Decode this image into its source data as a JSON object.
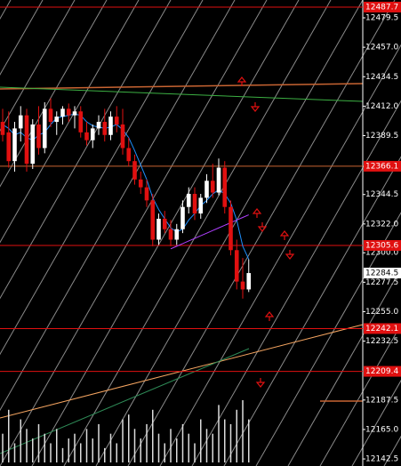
{
  "chart_data": {
    "type": "candlestick",
    "ylim": [
      12137.1,
      12493.1
    ],
    "yticks": [
      12479.5,
      {
        "value": 12457,
        "label": "12457.0"
      },
      12434.5,
      {
        "value": 12412,
        "label": "12412.0"
      },
      12389.5,
      12344.5,
      {
        "value": 12322,
        "label": "12322.0"
      },
      {
        "value": 12300,
        "label": "12300.0"
      },
      12277.5,
      {
        "value": 12255,
        "label": "12255.0"
      },
      12232.5,
      12187.5,
      {
        "value": 12165,
        "label": "12165.0"
      },
      12142.5
    ],
    "open": [
      12400,
      12392,
      12370,
      12395,
      12405,
      12368,
      12398,
      12380,
      12410,
      12400,
      12404,
      12410,
      12405,
      12408,
      12392,
      12386,
      12395,
      12400,
      12390,
      12404,
      12398,
      12380,
      12370,
      12356,
      12350,
      12340,
      12310,
      12326,
      12318,
      12310,
      12318,
      12335,
      12345,
      12330,
      12342,
      12355,
      12346,
      12365,
      12335,
      12302,
      12278,
      12272
    ],
    "high": [
      12410,
      12408,
      12400,
      12412,
      12410,
      12402,
      12412,
      12415,
      12418,
      12408,
      12412,
      12414,
      12412,
      12412,
      12400,
      12398,
      12405,
      12410,
      12408,
      12412,
      12410,
      12388,
      12375,
      12362,
      12356,
      12345,
      12330,
      12332,
      12325,
      12322,
      12340,
      12350,
      12350,
      12345,
      12360,
      12368,
      12372,
      12370,
      12340,
      12310,
      12296,
      12295
    ],
    "low": [
      12385,
      12365,
      12362,
      12385,
      12362,
      12364,
      12375,
      12376,
      12396,
      12390,
      12398,
      12400,
      12395,
      12388,
      12382,
      12380,
      12390,
      12385,
      12386,
      12392,
      12375,
      12366,
      12352,
      12345,
      12335,
      12305,
      12306,
      12315,
      12305,
      12306,
      12315,
      12330,
      12325,
      12326,
      12338,
      12342,
      12344,
      12330,
      12298,
      12272,
      12265,
      12270
    ],
    "close": [
      12390,
      12370,
      12395,
      12405,
      12368,
      12398,
      12380,
      12410,
      12400,
      12404,
      12410,
      12405,
      12408,
      12392,
      12386,
      12395,
      12400,
      12390,
      12404,
      12398,
      12380,
      12370,
      12356,
      12350,
      12340,
      12310,
      12326,
      12318,
      12310,
      12318,
      12335,
      12345,
      12330,
      12342,
      12355,
      12346,
      12365,
      12335,
      12302,
      12278,
      12272,
      12284.5
    ],
    "volumes": [
      30,
      55,
      20,
      45,
      35,
      25,
      40,
      30,
      20,
      35,
      15,
      25,
      30,
      20,
      35,
      25,
      40,
      15,
      30,
      20,
      45,
      50,
      35,
      25,
      40,
      55,
      30,
      20,
      35,
      25,
      40,
      30,
      20,
      45,
      35,
      30,
      60,
      45,
      40,
      55,
      65,
      45
    ],
    "series": [
      {
        "color": "#1e90ff",
        "values": [
          12398,
          12395,
          12390,
          12392,
          12388,
          12386,
          12390,
          12392,
          12398,
          12403,
          12404,
          12405,
          12406,
          12405,
          12400,
          12397,
          12396,
          12395,
          12396,
          12398,
          12394,
          12388,
          12378,
          12367,
          12356,
          12342,
          12333,
          12326,
          12319,
          12316,
          12318,
          12325,
          12330,
          12336,
          12340,
          12345,
          12348,
          12345,
          12338,
          12325,
          12305,
          12295
        ]
      },
      {
        "color": "#b040ff",
        "values": [
          null,
          null,
          null,
          null,
          null,
          null,
          null,
          null,
          null,
          null,
          null,
          null,
          null,
          null,
          null,
          null,
          null,
          null,
          null,
          null,
          null,
          null,
          null,
          null,
          null,
          null,
          null,
          null,
          12303,
          12305,
          12307,
          12309,
          12311,
          12313,
          12315,
          12317,
          12319,
          12321,
          12323,
          12325,
          12327,
          12329
        ]
      }
    ],
    "levels": [
      {
        "price": 12487.7,
        "color": "#e01010"
      },
      {
        "price": 12366.1,
        "color": "#c86432"
      },
      {
        "price": 12305.6,
        "color": "#e01010"
      },
      {
        "price": 12242.1,
        "color": "#e01010"
      },
      {
        "price": 12209.4,
        "color": "#e01010"
      }
    ],
    "last_price": 12284.5
  }
}
